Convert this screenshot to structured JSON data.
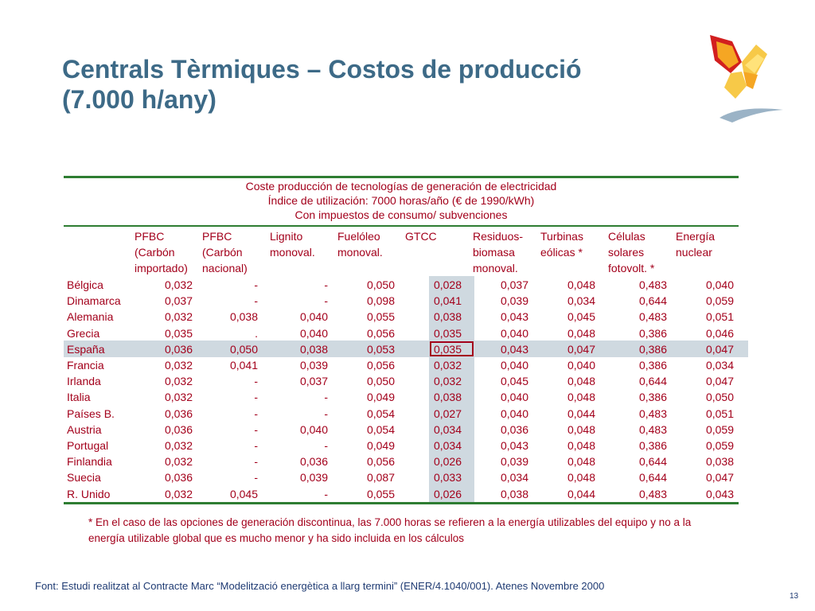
{
  "slide": {
    "title_line1": "Centrals Tèrmiques – Costos de producció",
    "title_line2": "(7.000 h/any)",
    "page_number": "13"
  },
  "table": {
    "caption_line1": "Coste producción de tecnologías de generación de electricidad",
    "caption_line2": "Índice de utilización: 7000 horas/año (€ de 1990/kWh)",
    "caption_line3": "Con impuestos de consumo/ subvenciones",
    "columns": [
      [
        "PFBC",
        "(Carbón",
        "importado)"
      ],
      [
        "PFBC",
        "(Carbón",
        "nacional)"
      ],
      [
        "Lignito",
        "monoval.",
        ""
      ],
      [
        "Fuelóleo",
        "monoval.",
        ""
      ],
      [
        "GTCC",
        "",
        ""
      ],
      [
        "Residuos-",
        "biomasa",
        "monoval."
      ],
      [
        "Turbinas",
        "eólicas *",
        ""
      ],
      [
        "Células",
        "solares",
        "fotovolt. *"
      ],
      [
        "Energía",
        "nuclear",
        ""
      ]
    ],
    "rows": [
      {
        "country": "Bélgica",
        "values": [
          "0,032",
          "-",
          "-",
          "0,050",
          "0,028",
          "0,037",
          "0,048",
          "0,483",
          "0,040"
        ]
      },
      {
        "country": "Dinamarca",
        "values": [
          "0,037",
          "-",
          "-",
          "0,098",
          "0,041",
          "0,039",
          "0,034",
          "0,644",
          "0,059"
        ]
      },
      {
        "country": "Alemania",
        "values": [
          "0,032",
          "0,038",
          "0,040",
          "0,055",
          "0,038",
          "0,043",
          "0,045",
          "0,483",
          "0,051"
        ]
      },
      {
        "country": "Grecia",
        "values": [
          "0,035",
          ".",
          "0,040",
          "0,056",
          "0,035",
          "0,040",
          "0,048",
          "0,386",
          "0,046"
        ]
      },
      {
        "country": "España",
        "values": [
          "0,036",
          "0,050",
          "0,038",
          "0,053",
          "0,035",
          "0,043",
          "0,047",
          "0,386",
          "0,047"
        ]
      },
      {
        "country": "Francia",
        "values": [
          "0,032",
          "0,041",
          "0,039",
          "0,056",
          "0,032",
          "0,040",
          "0,040",
          "0,386",
          "0,034"
        ]
      },
      {
        "country": "Irlanda",
        "values": [
          "0,032",
          "-",
          "0,037",
          "0,050",
          "0,032",
          "0,045",
          "0,048",
          "0,644",
          "0,047"
        ]
      },
      {
        "country": "Italia",
        "values": [
          "0,032",
          "-",
          "-",
          "0,049",
          "0,038",
          "0,040",
          "0,048",
          "0,386",
          "0,050"
        ]
      },
      {
        "country": "Países B.",
        "values": [
          "0,036",
          "-",
          "-",
          "0,054",
          "0,027",
          "0,040",
          "0,044",
          "0,483",
          "0,051"
        ]
      },
      {
        "country": "Austria",
        "values": [
          "0,036",
          "-",
          "0,040",
          "0,054",
          "0,034",
          "0,036",
          "0,048",
          "0,483",
          "0,059"
        ]
      },
      {
        "country": "Portugal",
        "values": [
          "0,032",
          "-",
          "-",
          "0,049",
          "0,034",
          "0,043",
          "0,048",
          "0,386",
          "0,059"
        ]
      },
      {
        "country": "Finlandia",
        "values": [
          "0,032",
          "-",
          "0,036",
          "0,056",
          "0,026",
          "0,039",
          "0,048",
          "0,644",
          "0,038"
        ]
      },
      {
        "country": "Suecia",
        "values": [
          "0,036",
          "-",
          "0,039",
          "0,087",
          "0,033",
          "0,034",
          "0,048",
          "0,644",
          "0,047"
        ]
      },
      {
        "country": "R. Unido",
        "values": [
          "0,032",
          "0,045",
          "-",
          "0,055",
          "0,026",
          "0,038",
          "0,044",
          "0,483",
          "0,043"
        ]
      }
    ]
  },
  "footnote": {
    "line1": "* En el caso de las opciones de generación discontinua, las 7.000 horas se refieren a la energía utilizables del equipo y no a la",
    "line2": "energía utilizable global que es mucho menor y ha sido incluida en los cálculos"
  },
  "source_text": "Font: Estudi realitzat al Contracte Marc “Modelització energètica a llarg termini”  (ENER/4.1040/001). Atenes Novembre 2000",
  "colors": {
    "title": "#3d6a87",
    "table_text": "#a3001b",
    "rules": "#2e7d32",
    "highlight": "#cfd9e0",
    "source": "#1f3b73"
  },
  "icons": [
    "butterfly-logo",
    "swoosh-logo"
  ]
}
